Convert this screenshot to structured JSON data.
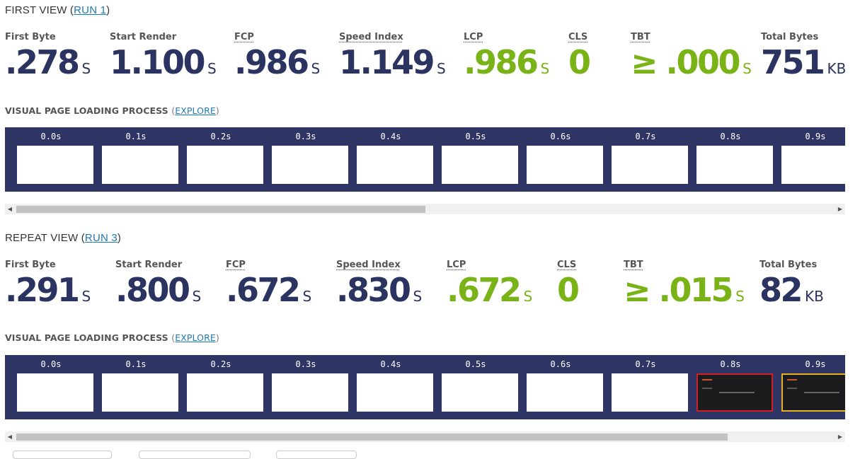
{
  "first_view": {
    "title": "FIRST VIEW (",
    "run_link": "RUN 1",
    "title_close": ")",
    "metrics": [
      {
        "label": "First Byte",
        "value": ".278",
        "unit": "S",
        "status": "normal"
      },
      {
        "label": "Start Render",
        "value": "1.100",
        "unit": "S",
        "status": "normal"
      },
      {
        "label": "FCP",
        "value": ".986",
        "unit": "S",
        "status": "normal"
      },
      {
        "label": "Speed Index",
        "value": "1.149",
        "unit": "S",
        "status": "normal"
      },
      {
        "label": "LCP",
        "value": ".986",
        "unit": "S",
        "status": "good"
      },
      {
        "label": "CLS",
        "value": "0",
        "unit": "",
        "status": "good"
      },
      {
        "label": "TBT",
        "value": "≥ .000",
        "unit": "S",
        "status": "good"
      },
      {
        "label": "Total Bytes",
        "value": "751",
        "unit": "KB",
        "status": "normal"
      }
    ],
    "visual_title": "VISUAL PAGE LOADING PROCESS",
    "explore_link": "EXPLORE",
    "frames": [
      "0.0s",
      "0.1s",
      "0.2s",
      "0.3s",
      "0.4s",
      "0.5s",
      "0.6s",
      "0.7s",
      "0.8s",
      "0.9s"
    ],
    "scroll_position": 0.5
  },
  "repeat_view": {
    "title": "REPEAT VIEW (",
    "run_link": "RUN 3",
    "title_close": ")",
    "metrics": [
      {
        "label": "First Byte",
        "value": ".291",
        "unit": "S",
        "status": "normal"
      },
      {
        "label": "Start Render",
        "value": ".800",
        "unit": "S",
        "status": "normal"
      },
      {
        "label": "FCP",
        "value": ".672",
        "unit": "S",
        "status": "normal"
      },
      {
        "label": "Speed Index",
        "value": ".830",
        "unit": "S",
        "status": "normal"
      },
      {
        "label": "LCP",
        "value": ".672",
        "unit": "S",
        "status": "good"
      },
      {
        "label": "CLS",
        "value": "0",
        "unit": "",
        "status": "good"
      },
      {
        "label": "TBT",
        "value": "≥ .015",
        "unit": "S",
        "status": "good"
      },
      {
        "label": "Total Bytes",
        "value": "82",
        "unit": "KB",
        "status": "normal"
      }
    ],
    "visual_title": "VISUAL PAGE LOADING PROCESS",
    "explore_link": "EXPLORE",
    "frames": [
      "0.0s",
      "0.1s",
      "0.2s",
      "0.3s",
      "0.4s",
      "0.5s",
      "0.6s",
      "0.7s",
      "0.8s",
      "0.9s"
    ],
    "scroll_position": 0.87
  },
  "colors": {
    "metric_text": "#2b3360",
    "good": "#7ab317",
    "strip_bg": "#2e3564",
    "link": "#1e7ab8",
    "frame_changed_border": "#d11f26",
    "frame_final_border": "#e6b21a"
  }
}
